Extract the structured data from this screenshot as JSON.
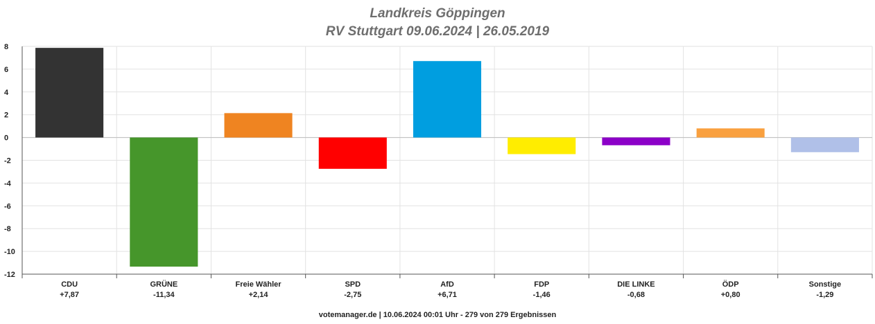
{
  "header": {
    "title": "Landkreis Göppingen",
    "subtitle": "RV Stuttgart 09.06.2024  | 26.05.2019"
  },
  "footer": {
    "text": "votemanager.de | 10.06.2024 00:01 Uhr - 279 von 279 Ergebnissen"
  },
  "chart_data": {
    "type": "bar",
    "title": "Landkreis Göppingen",
    "subtitle": "RV Stuttgart 09.06.2024  | 26.05.2019",
    "categories": [
      "CDU",
      "GRÜNE",
      "Freie Wähler",
      "SPD",
      "AfD",
      "FDP",
      "DIE LINKE",
      "ÖDP",
      "Sonstige"
    ],
    "values": [
      7.87,
      -11.34,
      2.14,
      -2.75,
      6.71,
      -1.46,
      -0.68,
      0.8,
      -1.29
    ],
    "value_labels": [
      "+7,87",
      "-11,34",
      "+2,14",
      "-2,75",
      "+6,71",
      "-1,46",
      "-0,68",
      "+0,80",
      "-1,29"
    ],
    "colors": [
      "#333333",
      "#46962b",
      "#ef8421",
      "#ff0000",
      "#009ee0",
      "#ffed00",
      "#8c00c8",
      "#f9a03f",
      "#b0c0e8"
    ],
    "yticks": [
      "8",
      "6",
      "4",
      "2",
      "0",
      "-2",
      "-4",
      "-6",
      "-8",
      "-10",
      "-12"
    ],
    "ylim": [
      -12,
      8
    ],
    "xlabel": "",
    "ylabel": "",
    "grid": true
  }
}
